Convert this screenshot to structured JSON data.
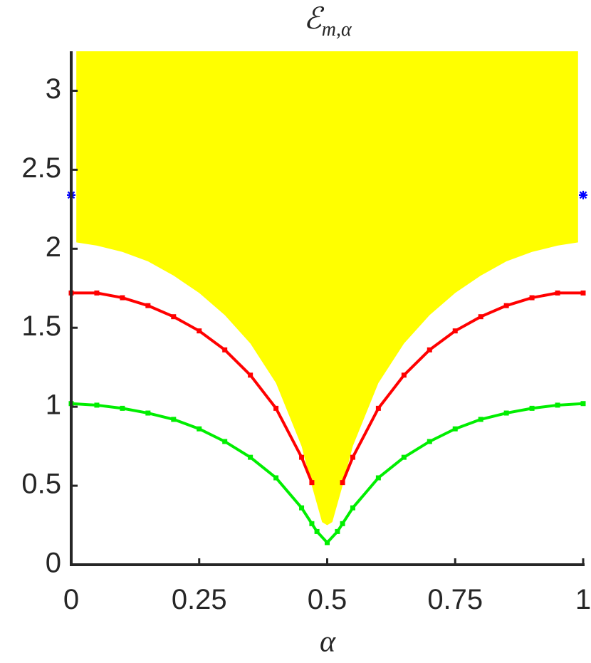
{
  "chart_data": {
    "type": "line",
    "title": {
      "symbol": "ℰ",
      "subscript": "m,α"
    },
    "x_label": "α",
    "xlim": [
      0,
      1
    ],
    "ylim": [
      0,
      3.25
    ],
    "xticks": [
      0,
      0.25,
      0.5,
      0.75,
      1
    ],
    "yticks": [
      0,
      0.5,
      1,
      1.5,
      2,
      2.5,
      3
    ],
    "series": [
      {
        "color": "#ffff00",
        "fill": "above",
        "marker": "none",
        "x": [
          0.01,
          0.05,
          0.1,
          0.15,
          0.2,
          0.25,
          0.3,
          0.35,
          0.4,
          0.45,
          0.47,
          0.49,
          0.5,
          0.51,
          0.53,
          0.55,
          0.6,
          0.65,
          0.7,
          0.75,
          0.8,
          0.85,
          0.9,
          0.95,
          0.99
        ],
        "values": [
          2.04,
          2.02,
          1.98,
          1.92,
          1.83,
          1.72,
          1.58,
          1.4,
          1.15,
          0.75,
          0.5,
          0.27,
          0.25,
          0.27,
          0.5,
          0.75,
          1.15,
          1.4,
          1.58,
          1.72,
          1.83,
          1.92,
          1.98,
          2.02,
          2.04
        ]
      },
      {
        "color": "#ff0000",
        "marker": "square",
        "x": [
          0,
          0.05,
          0.1,
          0.15,
          0.2,
          0.25,
          0.3,
          0.35,
          0.4,
          0.45,
          0.47,
          0.5,
          0.53,
          0.55,
          0.6,
          0.65,
          0.7,
          0.75,
          0.8,
          0.85,
          0.9,
          0.95,
          1
        ],
        "values": [
          1.72,
          1.72,
          1.69,
          1.64,
          1.57,
          1.48,
          1.36,
          1.2,
          0.99,
          0.68,
          0.52,
          null,
          0.52,
          0.68,
          0.99,
          1.2,
          1.36,
          1.48,
          1.57,
          1.64,
          1.69,
          1.72,
          1.72
        ]
      },
      {
        "color": "#00ee00",
        "marker": "square",
        "x": [
          0,
          0.05,
          0.1,
          0.15,
          0.2,
          0.25,
          0.3,
          0.35,
          0.4,
          0.45,
          0.47,
          0.48,
          0.5,
          0.52,
          0.53,
          0.55,
          0.6,
          0.65,
          0.7,
          0.75,
          0.8,
          0.85,
          0.9,
          0.95,
          1
        ],
        "values": [
          1.02,
          1.01,
          0.99,
          0.96,
          0.92,
          0.86,
          0.78,
          0.68,
          0.55,
          0.36,
          0.26,
          0.21,
          0.14,
          0.21,
          0.26,
          0.36,
          0.55,
          0.68,
          0.78,
          0.86,
          0.92,
          0.96,
          0.99,
          1.01,
          1.02
        ]
      },
      {
        "color": "#0000ff",
        "marker": "star",
        "line": false,
        "x": [
          0,
          1
        ],
        "values": [
          2.34,
          2.34
        ]
      }
    ]
  }
}
